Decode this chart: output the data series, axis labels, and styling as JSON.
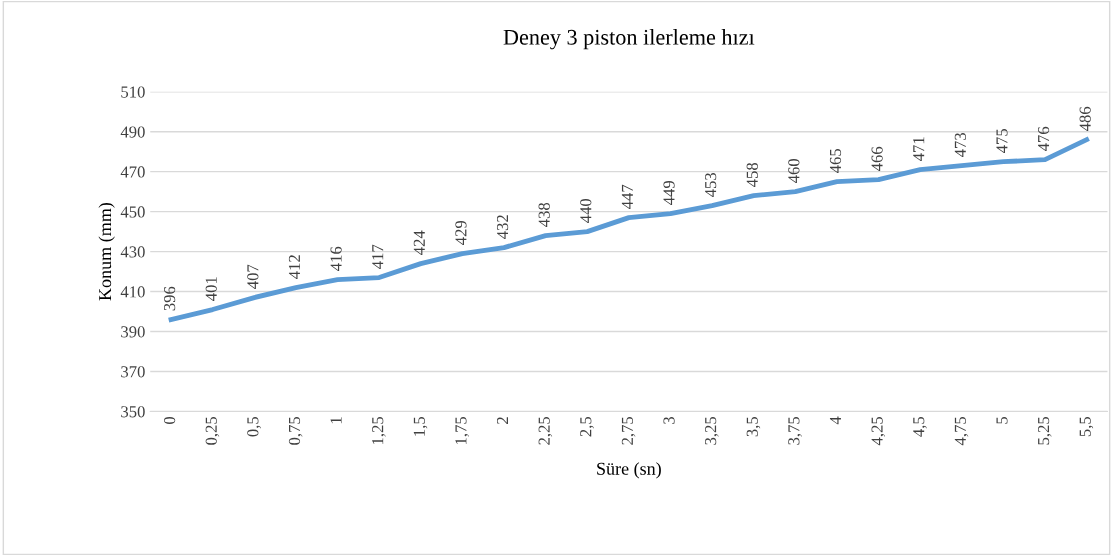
{
  "chart_data": {
    "type": "line",
    "title": "Deney 3 piston ilerleme hızı",
    "xlabel": "Süre (sn)",
    "ylabel": "Konum (mm)",
    "categories": [
      "0",
      "0,25",
      "0,5",
      "0,75",
      "1",
      "1,25",
      "1,5",
      "1,75",
      "2",
      "2,25",
      "2,5",
      "2,75",
      "3",
      "3,25",
      "3,5",
      "3,75",
      "4",
      "4,25",
      "4,5",
      "4,75",
      "5",
      "5,25",
      "5,5"
    ],
    "series": [
      {
        "color": "#5b9bd5",
        "values": [
          396,
          401,
          407,
          412,
          416,
          417,
          424,
          429,
          432,
          438,
          440,
          447,
          449,
          453,
          458,
          460,
          465,
          466,
          471,
          473,
          475,
          476,
          486
        ]
      }
    ],
    "ylim": [
      350,
      510
    ],
    "yticks": [
      350,
      370,
      390,
      410,
      430,
      450,
      470,
      490,
      510
    ],
    "grid": "y",
    "data_labels": true,
    "legend": false,
    "marker": "none",
    "line_style": "solid"
  }
}
